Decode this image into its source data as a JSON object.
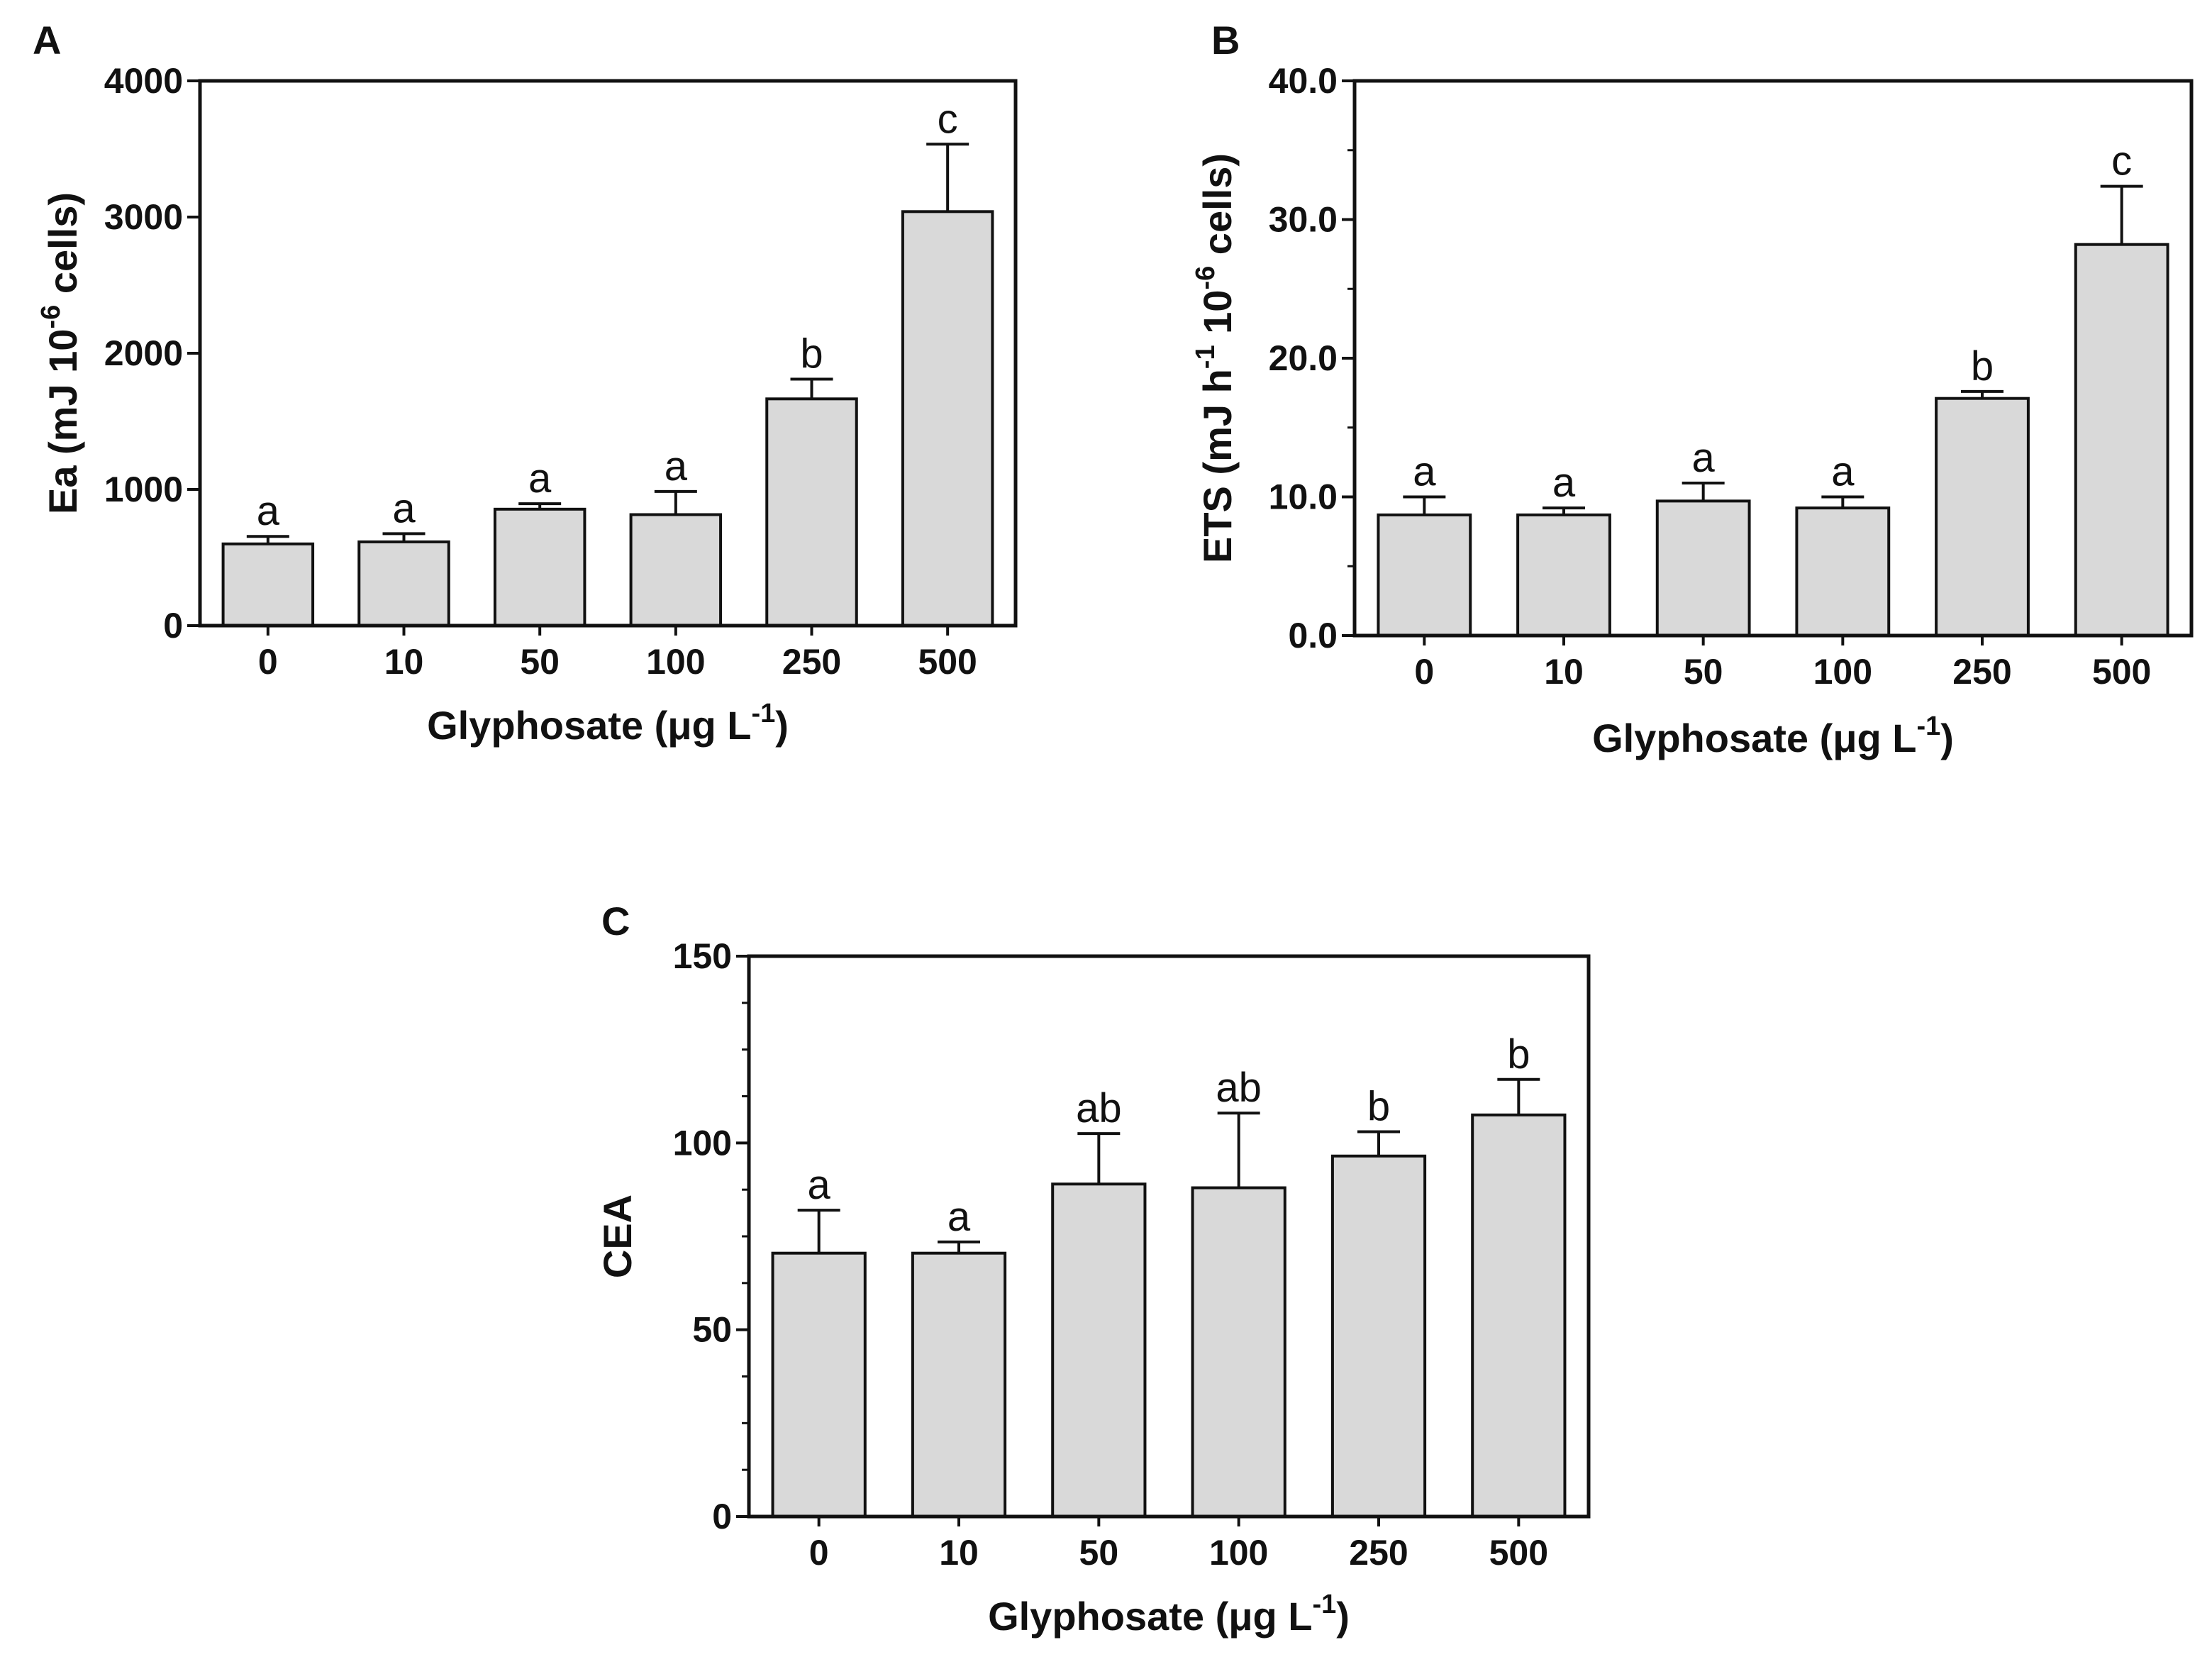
{
  "chart_data": [
    {
      "panel": "A",
      "type": "bar",
      "categories": [
        "0",
        "10",
        "50",
        "100",
        "250",
        "500"
      ],
      "values": [
        600,
        615,
        855,
        815,
        1665,
        3040
      ],
      "errors": [
        55,
        60,
        40,
        170,
        145,
        495
      ],
      "significance": [
        "a",
        "a",
        "a",
        "a",
        "b",
        "c"
      ],
      "ylim": [
        0,
        4000
      ],
      "yticks": [
        "0",
        "1000",
        "2000",
        "3000",
        "4000"
      ],
      "ylabel": {
        "main": "Ea (mJ 10",
        "sup": "-6",
        "rest": " cells)"
      },
      "xlabel": {
        "main": "Glyphosate (μg L",
        "sup": "-1",
        "rest": ")"
      }
    },
    {
      "panel": "B",
      "type": "bar",
      "categories": [
        "0",
        "10",
        "50",
        "100",
        "250",
        "500"
      ],
      "values": [
        8.7,
        8.7,
        9.7,
        9.2,
        17.1,
        28.2
      ],
      "errors": [
        1.3,
        0.5,
        1.3,
        0.8,
        0.5,
        4.2
      ],
      "significance": [
        "a",
        "a",
        "a",
        "a",
        "b",
        "c"
      ],
      "ylim": [
        0,
        40
      ],
      "yticks": [
        "0.0",
        "10.0",
        "20.0",
        "30.0",
        "40.0"
      ],
      "ylabel": {
        "main": "ETS (mJ h",
        "sup": "-1",
        "mid": " 10",
        "sup2": "-6",
        "rest": " cells)"
      },
      "xlabel": {
        "main": "Glyphosate (μg L",
        "sup": "-1",
        "rest": ")"
      }
    },
    {
      "panel": "C",
      "type": "bar",
      "categories": [
        "0",
        "10",
        "50",
        "100",
        "250",
        "500"
      ],
      "values": [
        70.5,
        70.5,
        89,
        88,
        96.5,
        107.5
      ],
      "errors": [
        11.5,
        3,
        13.5,
        20,
        6.5,
        9.5
      ],
      "significance": [
        "a",
        "a",
        "ab",
        "ab",
        "b",
        "b"
      ],
      "ylim": [
        0,
        150
      ],
      "yticks": [
        "0",
        "50",
        "100",
        "150"
      ],
      "ylabel": {
        "main": "CEA"
      },
      "xlabel": {
        "main": "Glyphosate (μg L",
        "sup": "-1",
        "rest": ")"
      }
    }
  ]
}
